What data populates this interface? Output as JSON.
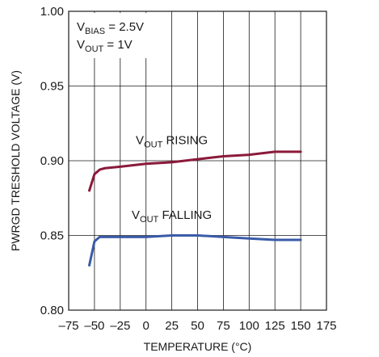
{
  "chart_data": {
    "type": "line",
    "title": "",
    "xlabel": "TEMPERATURE (°C)",
    "ylabel": "PWRGD TRESHOLD VOLTAGE (V)",
    "xlim": [
      -75,
      175
    ],
    "ylim": [
      0.8,
      1.0
    ],
    "xticks": [
      -75,
      -50,
      -25,
      0,
      25,
      50,
      75,
      100,
      125,
      150,
      175
    ],
    "xtick_labels": [
      "–75",
      "–50",
      "–25",
      "0",
      "25",
      "50",
      "75",
      "100",
      "125",
      "150",
      "175"
    ],
    "yticks": [
      0.8,
      0.85,
      0.9,
      0.95,
      1.0
    ],
    "ytick_labels": [
      "0.80",
      "0.85",
      "0.90",
      "0.95",
      "1.00"
    ],
    "grid": true,
    "colors": {
      "rising": "#8b1a3a",
      "falling": "#3a5ba8",
      "grid": "#1a1a1a"
    },
    "conditions": [
      {
        "main": "V",
        "sub": "BIAS",
        "rest": " = 2.5V"
      },
      {
        "main": "V",
        "sub": "OUT",
        "rest": " = 1V"
      }
    ],
    "series": [
      {
        "key": "rising",
        "label_main": "V",
        "label_sub": "OUT",
        "label_rest": " RISING",
        "label_at": [
          25,
          0.911
        ],
        "x": [
          -55,
          -50,
          -45,
          -40,
          -25,
          0,
          25,
          50,
          75,
          100,
          125,
          150
        ],
        "y": [
          0.88,
          0.891,
          0.894,
          0.895,
          0.896,
          0.898,
          0.899,
          0.901,
          0.903,
          0.904,
          0.906,
          0.906
        ]
      },
      {
        "key": "falling",
        "label_main": "V",
        "label_sub": "OUT",
        "label_rest": " FALLING",
        "label_at": [
          25,
          0.861
        ],
        "x": [
          -55,
          -50,
          -45,
          -40,
          -25,
          0,
          25,
          50,
          75,
          100,
          125,
          150
        ],
        "y": [
          0.83,
          0.846,
          0.849,
          0.849,
          0.849,
          0.849,
          0.85,
          0.85,
          0.849,
          0.848,
          0.847,
          0.847
        ]
      }
    ]
  }
}
